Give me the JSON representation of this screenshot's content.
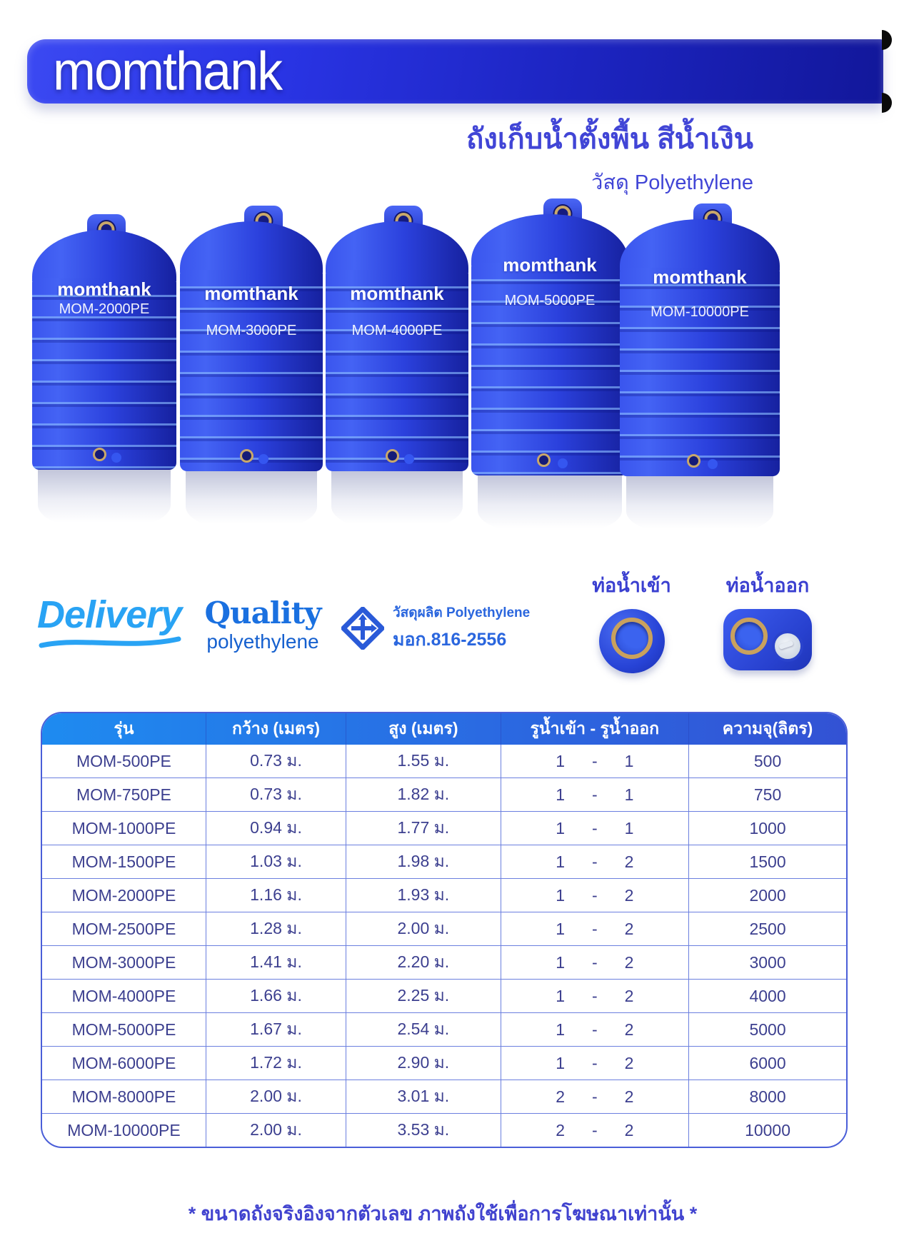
{
  "brand": {
    "logo_text": "momthank"
  },
  "header": {
    "title_line1": "ถังเก็บน้ำตั้งพื้น สีน้ำเงิน",
    "title_line2": "วัสดุ Polyethylene"
  },
  "tanks": [
    {
      "brand": "momthank",
      "model": "MOM-2000PE"
    },
    {
      "brand": "momthank",
      "model": "MOM-3000PE"
    },
    {
      "brand": "momthank",
      "model": "MOM-4000PE"
    },
    {
      "brand": "momthank",
      "model": "MOM-5000PE"
    },
    {
      "brand": "momthank",
      "model": "MOM-10000PE"
    }
  ],
  "badges": {
    "delivery_label": "Delivery",
    "quality_title": "Quality",
    "quality_sub": "polyethylene",
    "tis_line1": "วัสดุผลิต Polyethylene",
    "tis_line2": "มอก.816-2556",
    "inlet_label": "ท่อน้ำเข้า",
    "outlet_label": "ท่อน้ำออก"
  },
  "table": {
    "headers": [
      "รุ่น",
      "กว้าง (เมตร)",
      "สูง (เมตร)",
      "รูน้ำเข้า - รูน้ำออก",
      "ความจุ(ลิตร)"
    ],
    "rows": [
      {
        "model": "MOM-500PE",
        "width": "0.73 ม.",
        "height": "1.55 ม.",
        "inlet": "1",
        "outlet": "1",
        "capacity": "500"
      },
      {
        "model": "MOM-750PE",
        "width": "0.73 ม.",
        "height": "1.82 ม.",
        "inlet": "1",
        "outlet": "1",
        "capacity": "750"
      },
      {
        "model": "MOM-1000PE",
        "width": "0.94 ม.",
        "height": "1.77 ม.",
        "inlet": "1",
        "outlet": "1",
        "capacity": "1000"
      },
      {
        "model": "MOM-1500PE",
        "width": "1.03 ม.",
        "height": "1.98 ม.",
        "inlet": "1",
        "outlet": "2",
        "capacity": "1500"
      },
      {
        "model": "MOM-2000PE",
        "width": "1.16 ม.",
        "height": "1.93 ม.",
        "inlet": "1",
        "outlet": "2",
        "capacity": "2000"
      },
      {
        "model": "MOM-2500PE",
        "width": "1.28 ม.",
        "height": "2.00 ม.",
        "inlet": "1",
        "outlet": "2",
        "capacity": "2500"
      },
      {
        "model": "MOM-3000PE",
        "width": "1.41 ม.",
        "height": "2.20 ม.",
        "inlet": "1",
        "outlet": "2",
        "capacity": "3000"
      },
      {
        "model": "MOM-4000PE",
        "width": "1.66 ม.",
        "height": "2.25 ม.",
        "inlet": "1",
        "outlet": "2",
        "capacity": "4000"
      },
      {
        "model": "MOM-5000PE",
        "width": "1.67 ม.",
        "height": "2.54 ม.",
        "inlet": "1",
        "outlet": "2",
        "capacity": "5000"
      },
      {
        "model": "MOM-6000PE",
        "width": "1.72 ม.",
        "height": "2.90 ม.",
        "inlet": "1",
        "outlet": "2",
        "capacity": "6000"
      },
      {
        "model": "MOM-8000PE",
        "width": "2.00 ม.",
        "height": "3.01 ม.",
        "inlet": "2",
        "outlet": "2",
        "capacity": "8000"
      },
      {
        "model": "MOM-10000PE",
        "width": "2.00 ม.",
        "height": "3.53 ม.",
        "inlet": "2",
        "outlet": "2",
        "capacity": "10000"
      }
    ]
  },
  "footer": {
    "note": "* ขนาดถังจริงอิงจากตัวเลข ภาพถังใช้เพื่อการโฆษณาเท่านั้น *"
  },
  "colors": {
    "banner_left": "#2a35e6",
    "banner_right": "#12179a",
    "subtitle_text": "#4145d6",
    "tank_blue": "#2b41dd",
    "delivery_blue": "#29a3f4",
    "quality_blue": "#1a70e0",
    "tis_blue": "#2a66de",
    "table_header_left": "#1e8bf0",
    "table_header_right": "#3352d4",
    "table_border": "#4a5ed8",
    "table_text": "#3c3f8f",
    "footer_text": "#4143cf"
  }
}
